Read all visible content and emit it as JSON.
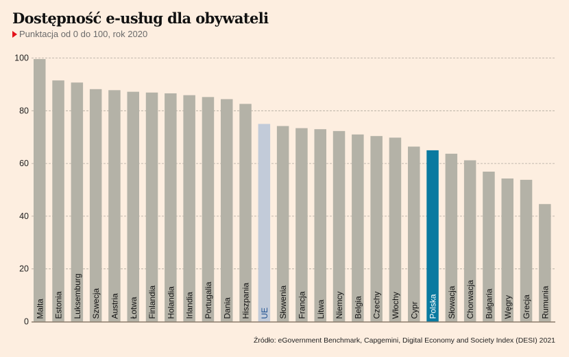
{
  "header": {
    "title": "Dostępność e-usług dla obywateli",
    "subtitle": "Punktacja od 0 do 100, rok 2020"
  },
  "footer": {
    "source": "Źródło: eGovernment Benchmark, Capgemini, Digital Economy and Society Index (DESI) 2021"
  },
  "colors": {
    "background": "#fdeee0",
    "default_bar": "#b4b2a7",
    "eu_bar": "#c2cbd9",
    "highlight_bar": "#0a7aa0",
    "grid": "#b0a89e",
    "baseline": "#8a7a6a",
    "accent_triangle": "#e3121b"
  },
  "chart_data": {
    "type": "bar",
    "title": "Dostępność e-usług dla obywateli",
    "subtitle": "Punktacja od 0 do 100, rok 2020",
    "xlabel": "",
    "ylabel": "",
    "ylim": [
      0,
      100
    ],
    "yticks": [
      0,
      20,
      40,
      60,
      80,
      100
    ],
    "grid": true,
    "legend": "none",
    "categories": [
      "Malta",
      "Estonia",
      "Luksemburg",
      "Szwecja",
      "Austria",
      "Łotwa",
      "Finlandia",
      "Holandia",
      "Irlandia",
      "Portugalia",
      "Dania",
      "Hiszpania",
      "UE",
      "Słowenia",
      "Francja",
      "Litwa",
      "Niemcy",
      "Belgia",
      "Czechy",
      "Włochy",
      "Cypr",
      "Polska",
      "Słowacja",
      "Chorwacja",
      "Bułgaria",
      "Węgry",
      "Grecja",
      "Rumunia"
    ],
    "values": [
      99.6,
      91.5,
      90.7,
      88.2,
      87.8,
      87.2,
      86.9,
      86.6,
      85.9,
      85.2,
      84.4,
      82.6,
      75.0,
      74.2,
      73.4,
      73.0,
      72.3,
      71.0,
      70.4,
      69.8,
      66.4,
      65.0,
      63.7,
      61.2,
      56.9,
      54.3,
      53.8,
      44.6
    ],
    "highlight": {
      "UE": "eu_bar",
      "Polska": "highlight_bar"
    }
  }
}
